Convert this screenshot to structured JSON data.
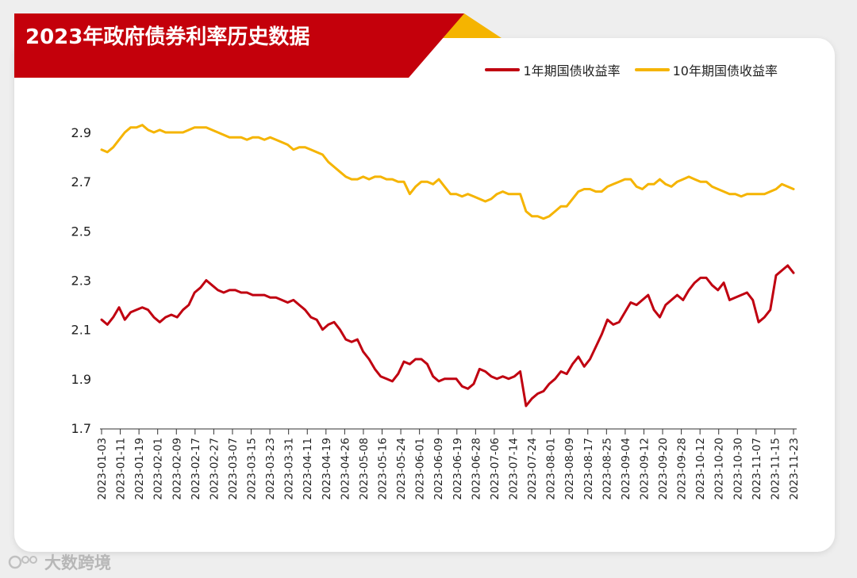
{
  "title": "2023年政府债券利率历史数据",
  "watermark": "大数跨境",
  "colors": {
    "banner": "#c4000b",
    "banner_accent": "#f5b400",
    "series_1y": "#c00010",
    "series_10y": "#f5b400"
  },
  "chart_data": {
    "type": "line",
    "title": "2023年政府债券利率历史数据",
    "ylim": [
      1.7,
      2.95
    ],
    "yticks": [
      1.7,
      1.9,
      2.1,
      2.3,
      2.5,
      2.7,
      2.9
    ],
    "ytick_labels": [
      "1.7",
      "1.9",
      "2.1",
      "2.3",
      "2.5",
      "2.7",
      "2.9"
    ],
    "xticks": [
      "2023-01-03",
      "2023-01-11",
      "2023-01-19",
      "2023-02-01",
      "2023-02-09",
      "2023-02-17",
      "2023-02-27",
      "2023-03-07",
      "2023-03-15",
      "2023-03-23",
      "2023-03-31",
      "2023-04-11",
      "2023-04-19",
      "2023-04-26",
      "2023-05-08",
      "2023-05-16",
      "2023-05-24",
      "2023-06-01",
      "2023-06-09",
      "2023-06-19",
      "2023-06-28",
      "2023-07-06",
      "2023-07-14",
      "2023-07-24",
      "2023-08-01",
      "2023-08-09",
      "2023-08-17",
      "2023-08-25",
      "2023-09-04",
      "2023-09-12",
      "2023-09-20",
      "2023-09-28",
      "2023-10-12",
      "2023-10-20",
      "2023-10-30",
      "2023-11-07",
      "2023-11-15",
      "2023-11-23"
    ],
    "grid": false,
    "legend_position": "top-right",
    "series": [
      {
        "name": "1年期国债收益率",
        "color": "#c00010",
        "values": [
          2.14,
          2.12,
          2.15,
          2.19,
          2.14,
          2.17,
          2.18,
          2.19,
          2.18,
          2.15,
          2.13,
          2.15,
          2.16,
          2.15,
          2.18,
          2.2,
          2.25,
          2.27,
          2.3,
          2.28,
          2.26,
          2.25,
          2.26,
          2.26,
          2.25,
          2.25,
          2.24,
          2.24,
          2.24,
          2.23,
          2.23,
          2.22,
          2.21,
          2.22,
          2.2,
          2.18,
          2.15,
          2.14,
          2.1,
          2.12,
          2.13,
          2.1,
          2.06,
          2.05,
          2.06,
          2.01,
          1.98,
          1.94,
          1.91,
          1.9,
          1.89,
          1.92,
          1.97,
          1.96,
          1.98,
          1.98,
          1.96,
          1.91,
          1.89,
          1.9,
          1.9,
          1.9,
          1.87,
          1.86,
          1.88,
          1.94,
          1.93,
          1.91,
          1.9,
          1.91,
          1.9,
          1.91,
          1.93,
          1.79,
          1.82,
          1.84,
          1.85,
          1.88,
          1.9,
          1.93,
          1.92,
          1.96,
          1.99,
          1.95,
          1.98,
          2.03,
          2.08,
          2.14,
          2.12,
          2.13,
          2.17,
          2.21,
          2.2,
          2.22,
          2.24,
          2.18,
          2.15,
          2.2,
          2.22,
          2.24,
          2.22,
          2.26,
          2.29,
          2.31,
          2.31,
          2.28,
          2.26,
          2.29,
          2.22,
          2.23,
          2.24,
          2.25,
          2.22,
          2.13,
          2.15,
          2.18,
          2.32,
          2.34,
          2.36,
          2.33
        ]
      },
      {
        "name": "10年期国债收益率",
        "color": "#f5b400",
        "values": [
          2.83,
          2.82,
          2.84,
          2.87,
          2.9,
          2.92,
          2.92,
          2.93,
          2.91,
          2.9,
          2.91,
          2.9,
          2.9,
          2.9,
          2.9,
          2.91,
          2.92,
          2.92,
          2.92,
          2.91,
          2.9,
          2.89,
          2.88,
          2.88,
          2.88,
          2.87,
          2.88,
          2.88,
          2.87,
          2.88,
          2.87,
          2.86,
          2.85,
          2.83,
          2.84,
          2.84,
          2.83,
          2.82,
          2.81,
          2.78,
          2.76,
          2.74,
          2.72,
          2.71,
          2.71,
          2.72,
          2.71,
          2.72,
          2.72,
          2.71,
          2.71,
          2.7,
          2.7,
          2.65,
          2.68,
          2.7,
          2.7,
          2.69,
          2.71,
          2.68,
          2.65,
          2.65,
          2.64,
          2.65,
          2.64,
          2.63,
          2.62,
          2.63,
          2.65,
          2.66,
          2.65,
          2.65,
          2.65,
          2.58,
          2.56,
          2.56,
          2.55,
          2.56,
          2.58,
          2.6,
          2.6,
          2.63,
          2.66,
          2.67,
          2.67,
          2.66,
          2.66,
          2.68,
          2.69,
          2.7,
          2.71,
          2.71,
          2.68,
          2.67,
          2.69,
          2.69,
          2.71,
          2.69,
          2.68,
          2.7,
          2.71,
          2.72,
          2.71,
          2.7,
          2.7,
          2.68,
          2.67,
          2.66,
          2.65,
          2.65,
          2.64,
          2.65,
          2.65,
          2.65,
          2.65,
          2.66,
          2.67,
          2.69,
          2.68,
          2.67
        ]
      }
    ]
  }
}
